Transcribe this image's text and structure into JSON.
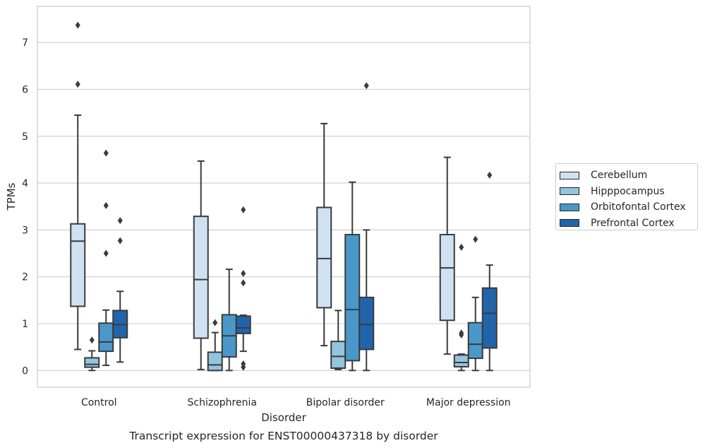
{
  "chart_data": {
    "type": "box",
    "title": "Transcript expression for ENST00000437318 by disorder",
    "xlabel": "Disorder",
    "ylabel": "TPMs",
    "ylim": [
      -0.35,
      7.7
    ],
    "yticks": [
      0,
      1,
      2,
      3,
      4,
      5,
      6,
      7
    ],
    "grid": true,
    "legend_position": "right",
    "categories": [
      "Control",
      "Schizophrenia",
      "Bipolar disorder",
      "Major depression"
    ],
    "series": [
      {
        "name": "Cerebellum",
        "color": "#d0e1f2",
        "boxes": [
          {
            "whisker_low": 0.45,
            "q1": 1.37,
            "median": 2.76,
            "q3": 3.13,
            "whisker_high": 5.45,
            "outliers": [
              6.11,
              7.37
            ]
          },
          {
            "whisker_low": 0.02,
            "q1": 0.69,
            "median": 1.94,
            "q3": 3.29,
            "whisker_high": 4.47,
            "outliers": []
          },
          {
            "whisker_low": 0.53,
            "q1": 1.34,
            "median": 2.39,
            "q3": 3.48,
            "whisker_high": 5.27,
            "outliers": []
          },
          {
            "whisker_low": 0.35,
            "q1": 1.07,
            "median": 2.19,
            "q3": 2.9,
            "whisker_high": 4.55,
            "outliers": []
          }
        ]
      },
      {
        "name": "Hipppocampus",
        "color": "#94c4df",
        "boxes": [
          {
            "whisker_low": 0.0,
            "q1": 0.07,
            "median": 0.13,
            "q3": 0.27,
            "whisker_high": 0.42,
            "outliers": [
              0.65
            ]
          },
          {
            "whisker_low": 0.0,
            "q1": 0.0,
            "median": 0.12,
            "q3": 0.39,
            "whisker_high": 0.81,
            "outliers": [
              1.02
            ]
          },
          {
            "whisker_low": 0.02,
            "q1": 0.05,
            "median": 0.3,
            "q3": 0.62,
            "whisker_high": 1.28,
            "outliers": []
          },
          {
            "whisker_low": 0.0,
            "q1": 0.08,
            "median": 0.17,
            "q3": 0.33,
            "whisker_high": 0.35,
            "outliers": [
              0.76,
              0.8,
              2.63
            ]
          }
        ]
      },
      {
        "name": "Orbitofontal Cortex",
        "color": "#4a98c9",
        "boxes": [
          {
            "whisker_low": 0.11,
            "q1": 0.41,
            "median": 0.61,
            "q3": 1.01,
            "whisker_high": 1.29,
            "outliers": [
              2.5,
              3.52,
              4.64
            ]
          },
          {
            "whisker_low": 0.0,
            "q1": 0.29,
            "median": 0.74,
            "q3": 1.19,
            "whisker_high": 2.16,
            "outliers": []
          },
          {
            "whisker_low": 0.0,
            "q1": 0.21,
            "median": 1.3,
            "q3": 2.9,
            "whisker_high": 4.02,
            "outliers": []
          },
          {
            "whisker_low": 0.0,
            "q1": 0.26,
            "median": 0.56,
            "q3": 1.02,
            "whisker_high": 1.56,
            "outliers": [
              2.8
            ]
          }
        ]
      },
      {
        "name": "Prefrontal Cortex",
        "color": "#2164ab",
        "boxes": [
          {
            "whisker_low": 0.18,
            "q1": 0.7,
            "median": 0.98,
            "q3": 1.28,
            "whisker_high": 1.69,
            "outliers": [
              2.77,
              3.2
            ]
          },
          {
            "whisker_low": 0.41,
            "q1": 0.79,
            "median": 0.91,
            "q3": 1.16,
            "whisker_high": 1.18,
            "outliers": [
              0.07,
              0.14,
              1.87,
              2.07,
              3.43
            ]
          },
          {
            "whisker_low": 0.0,
            "q1": 0.45,
            "median": 0.98,
            "q3": 1.56,
            "whisker_high": 3.0,
            "outliers": [
              6.08
            ]
          },
          {
            "whisker_low": 0.0,
            "q1": 0.48,
            "median": 1.22,
            "q3": 1.76,
            "whisker_high": 2.25,
            "outliers": [
              4.17
            ]
          }
        ]
      }
    ]
  }
}
